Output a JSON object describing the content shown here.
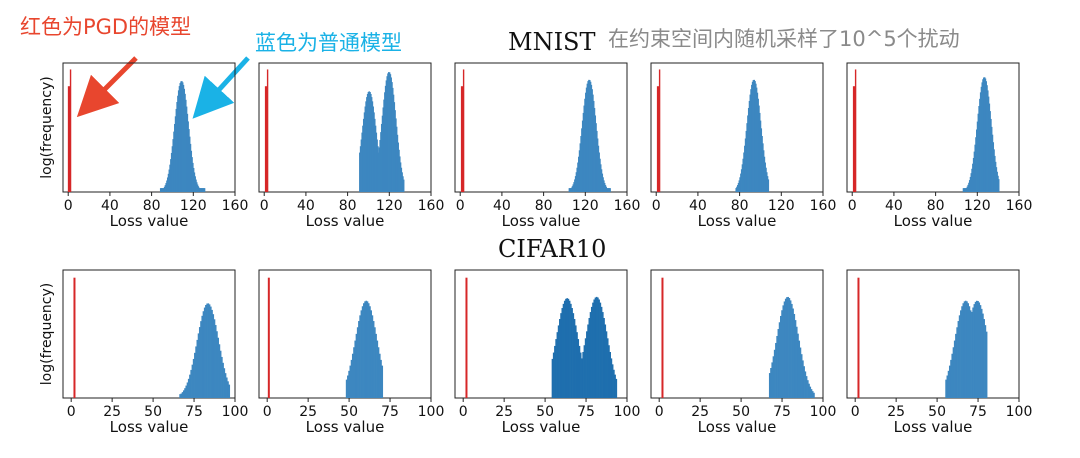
{
  "annotations": {
    "red_label": "红色为PGD的模型",
    "blue_label": "蓝色为普通模型",
    "subtitle": "在约束空间内随机采样了10^5个扰动",
    "red_color": "#e8462e",
    "blue_color": "#1ab2e6"
  },
  "rows": [
    {
      "title": "MNIST"
    },
    {
      "title": "CIFAR10"
    }
  ],
  "colors": {
    "robust": "#d62728",
    "standard": "#1f77b4"
  },
  "chart_data": [
    {
      "type": "bar",
      "dataset": "MNIST",
      "xlabel": "Loss value",
      "ylabel": "log(frequency)",
      "xlim": [
        -5,
        160
      ],
      "xticks": [
        0,
        40,
        80,
        120,
        160
      ],
      "red_peaks": [
        1
      ],
      "blue_range": [
        88,
        130
      ],
      "blue_peaks": [
        {
          "x": 108,
          "h": 0.86
        }
      ]
    },
    {
      "type": "bar",
      "dataset": "MNIST",
      "xlabel": "Loss value",
      "xlim": [
        -5,
        160
      ],
      "xticks": [
        0,
        40,
        80,
        120,
        160
      ],
      "red_peaks": [
        2
      ],
      "blue_range": [
        91,
        133
      ],
      "blue_peaks": [
        {
          "x": 100,
          "h": 0.78
        },
        {
          "x": 119,
          "h": 0.93
        }
      ]
    },
    {
      "type": "bar",
      "dataset": "MNIST",
      "xlabel": "Loss value",
      "xlim": [
        -5,
        160
      ],
      "xticks": [
        0,
        40,
        80,
        120,
        160
      ],
      "red_peaks": [
        2
      ],
      "blue_range": [
        104,
        143
      ],
      "blue_peaks": [
        {
          "x": 123,
          "h": 0.87
        }
      ]
    },
    {
      "type": "bar",
      "dataset": "MNIST",
      "xlabel": "Loss value",
      "xlim": [
        -5,
        160
      ],
      "xticks": [
        0,
        40,
        80,
        120,
        160
      ],
      "red_peaks": [
        2
      ],
      "blue_range": [
        76,
        107
      ],
      "blue_peaks": [
        {
          "x": 93,
          "h": 0.87
        }
      ]
    },
    {
      "type": "bar",
      "dataset": "MNIST",
      "xlabel": "Loss value",
      "xlim": [
        -5,
        160
      ],
      "xticks": [
        0,
        40,
        80,
        120,
        160
      ],
      "red_peaks": [
        2
      ],
      "blue_range": [
        106,
        140
      ],
      "blue_peaks": [
        {
          "x": 126,
          "h": 0.89
        }
      ]
    },
    {
      "type": "bar",
      "dataset": "CIFAR10",
      "xlabel": "Loss value",
      "ylabel": "log(frequency)",
      "xlim": [
        -5,
        100
      ],
      "xticks": [
        0,
        25,
        50,
        75,
        100
      ],
      "red_peaks": [
        2
      ],
      "blue_range": [
        66,
        96
      ],
      "blue_peaks": [
        {
          "x": 83,
          "h": 0.74
        }
      ]
    },
    {
      "type": "bar",
      "dataset": "CIFAR10",
      "xlabel": "Loss value",
      "xlim": [
        -5,
        100
      ],
      "xticks": [
        0,
        25,
        50,
        75,
        100
      ],
      "red_peaks": [
        1
      ],
      "blue_range": [
        48,
        70
      ],
      "blue_peaks": [
        {
          "x": 60,
          "h": 0.76
        }
      ]
    },
    {
      "type": "bar",
      "dataset": "CIFAR10",
      "xlabel": "Loss value",
      "xlim": [
        -5,
        100
      ],
      "xticks": [
        0,
        25,
        50,
        75,
        100
      ],
      "red_peaks": [
        2
      ],
      "blue_range": [
        54,
        93
      ],
      "blue_peaks": [
        {
          "x": 63,
          "h": 0.78
        },
        {
          "x": 81,
          "h": 0.79
        }
      ]
    },
    {
      "type": "bar",
      "dataset": "CIFAR10",
      "xlabel": "Loss value",
      "xlim": [
        -5,
        100
      ],
      "xticks": [
        0,
        25,
        50,
        75,
        100
      ],
      "red_peaks": [
        2
      ],
      "blue_range": [
        67,
        94
      ],
      "blue_peaks": [
        {
          "x": 78,
          "h": 0.79
        }
      ]
    },
    {
      "type": "bar",
      "dataset": "CIFAR10",
      "xlabel": "Loss value",
      "xlim": [
        -5,
        100
      ],
      "xticks": [
        0,
        25,
        50,
        75,
        100
      ],
      "red_peaks": [
        2
      ],
      "blue_range": [
        55,
        80
      ],
      "blue_peaks": [
        {
          "x": 67,
          "h": 0.76
        },
        {
          "x": 74,
          "h": 0.76
        }
      ]
    }
  ]
}
